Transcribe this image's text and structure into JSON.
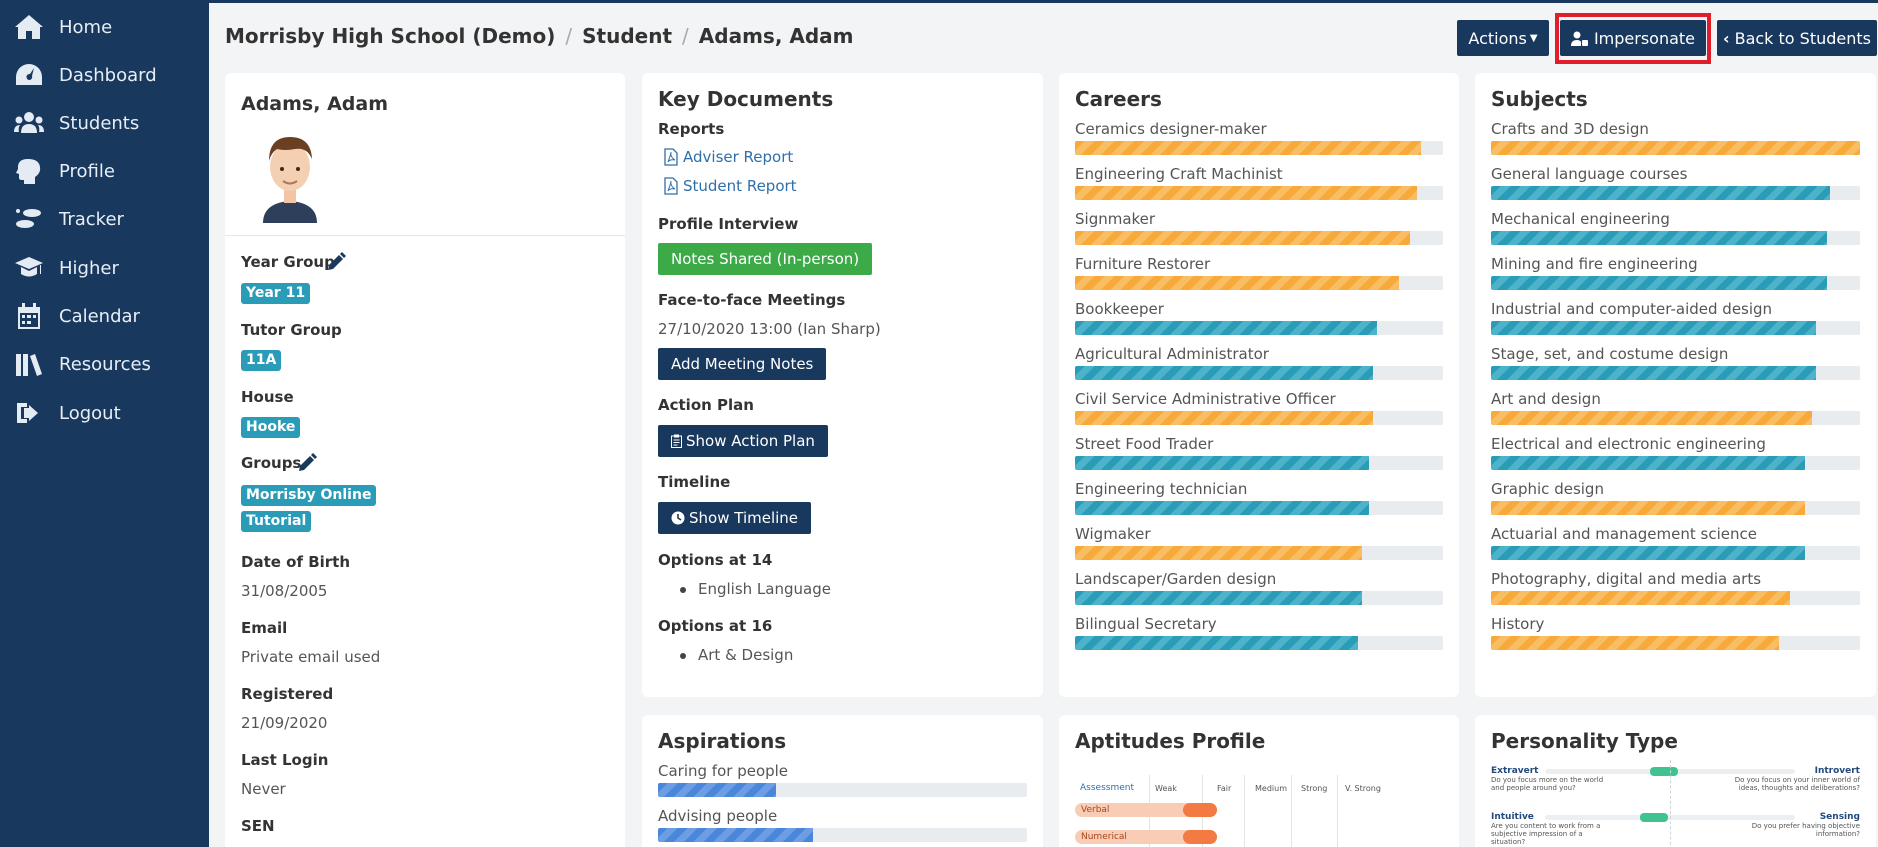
{
  "sidebar": {
    "items": [
      {
        "label": "Home",
        "icon": "home-icon"
      },
      {
        "label": "Dashboard",
        "icon": "dashboard-icon"
      },
      {
        "label": "Students",
        "icon": "students-icon"
      },
      {
        "label": "Profile",
        "icon": "profile-icon"
      },
      {
        "label": "Tracker",
        "icon": "tracker-icon"
      },
      {
        "label": "Higher",
        "icon": "graduation-icon"
      },
      {
        "label": "Calendar",
        "icon": "calendar-icon"
      },
      {
        "label": "Resources",
        "icon": "resources-icon"
      },
      {
        "label": "Logout",
        "icon": "logout-icon"
      }
    ]
  },
  "header": {
    "breadcrumb": [
      "Morrisby High School (Demo)",
      "Student",
      "Adams, Adam"
    ],
    "actions_label": "Actions",
    "impersonate_label": "Impersonate",
    "back_label": "Back to Students"
  },
  "student": {
    "name": "Adams, Adam",
    "year_group_label": "Year Group",
    "year_group": "Year 11",
    "tutor_group_label": "Tutor Group",
    "tutor_group": "11A",
    "house_label": "House",
    "house": "Hooke",
    "groups_label": "Groups",
    "groups": [
      "Morrisby Online",
      "Tutorial"
    ],
    "dob_label": "Date of Birth",
    "dob": "31/08/2005",
    "email_label": "Email",
    "email": "Private email used",
    "registered_label": "Registered",
    "registered": "21/09/2020",
    "last_login_label": "Last Login",
    "last_login": "Never",
    "sen_label": "SEN"
  },
  "key_documents": {
    "title": "Key Documents",
    "reports_label": "Reports",
    "reports": [
      "Adviser Report",
      "Student Report"
    ],
    "profile_interview_label": "Profile Interview",
    "notes_shared": "Notes Shared (In-person)",
    "meetings_label": "Face-to-face Meetings",
    "meeting": "27/10/2020 13:00 (Ian Sharp)",
    "add_notes": "Add Meeting Notes",
    "action_plan_label": "Action Plan",
    "show_action_plan": "Show Action Plan",
    "timeline_label": "Timeline",
    "show_timeline": "Show Timeline",
    "options14_label": "Options at 14",
    "options14": [
      "English Language"
    ],
    "options16_label": "Options at 16",
    "options16": [
      "Art & Design"
    ]
  },
  "careers": {
    "title": "Careers",
    "items": [
      {
        "label": "Ceramics designer-maker",
        "value": 94,
        "color": "orange"
      },
      {
        "label": "Engineering Craft Machinist",
        "value": 93,
        "color": "orange"
      },
      {
        "label": "Signmaker",
        "value": 91,
        "color": "orange"
      },
      {
        "label": "Furniture Restorer",
        "value": 88,
        "color": "orange"
      },
      {
        "label": "Bookkeeper",
        "value": 82,
        "color": "teal"
      },
      {
        "label": "Agricultural Administrator",
        "value": 81,
        "color": "teal"
      },
      {
        "label": "Civil Service Administrative Officer",
        "value": 81,
        "color": "orange"
      },
      {
        "label": "Street Food Trader",
        "value": 80,
        "color": "teal"
      },
      {
        "label": "Engineering technician",
        "value": 80,
        "color": "teal"
      },
      {
        "label": "Wigmaker",
        "value": 78,
        "color": "orange"
      },
      {
        "label": "Landscaper/Garden design",
        "value": 78,
        "color": "teal"
      },
      {
        "label": "Bilingual Secretary",
        "value": 77,
        "color": "teal"
      }
    ]
  },
  "subjects": {
    "title": "Subjects",
    "items": [
      {
        "label": "Crafts and 3D design",
        "value": 100,
        "color": "orange"
      },
      {
        "label": "General language courses",
        "value": 92,
        "color": "teal"
      },
      {
        "label": "Mechanical engineering",
        "value": 91,
        "color": "teal"
      },
      {
        "label": "Mining and fire engineering",
        "value": 91,
        "color": "teal"
      },
      {
        "label": "Industrial and computer-aided design",
        "value": 88,
        "color": "teal"
      },
      {
        "label": "Stage, set, and costume design",
        "value": 88,
        "color": "teal"
      },
      {
        "label": "Art and design",
        "value": 87,
        "color": "orange"
      },
      {
        "label": "Electrical and electronic engineering",
        "value": 85,
        "color": "teal"
      },
      {
        "label": "Graphic design",
        "value": 85,
        "color": "orange"
      },
      {
        "label": "Actuarial and management science",
        "value": 85,
        "color": "teal"
      },
      {
        "label": "Photography, digital and media arts",
        "value": 81,
        "color": "orange"
      },
      {
        "label": "History",
        "value": 78,
        "color": "orange"
      }
    ]
  },
  "aspirations": {
    "title": "Aspirations",
    "items": [
      {
        "label": "Caring for people",
        "value": 32
      },
      {
        "label": "Advising people",
        "value": 42
      }
    ]
  },
  "aptitudes": {
    "title": "Aptitudes Profile",
    "header": [
      "Assessment",
      "Weak",
      "Fair",
      "Medium",
      "Strong",
      "V. Strong"
    ],
    "rows": [
      "Verbal",
      "Numerical"
    ]
  },
  "personality": {
    "title": "Personality Type",
    "rows": [
      {
        "left": "Extravert",
        "left_q": "Do you focus more on the world and people around you?",
        "right": "Introvert",
        "right_q": "Do you focus on your inner world of ideas, thoughts and deliberations?",
        "level": 0.42
      },
      {
        "left": "Intuitive",
        "left_q": "Are you content to work from a subjective impression of a situation?",
        "right": "Sensing",
        "right_q": "Do you prefer having objective information?",
        "level": 0.38
      }
    ]
  },
  "colors": {
    "sidebar": "#18385e",
    "accent_teal": "#2a9cb8",
    "accent_orange": "#f7a93a",
    "highlight": "#e11d2c"
  }
}
